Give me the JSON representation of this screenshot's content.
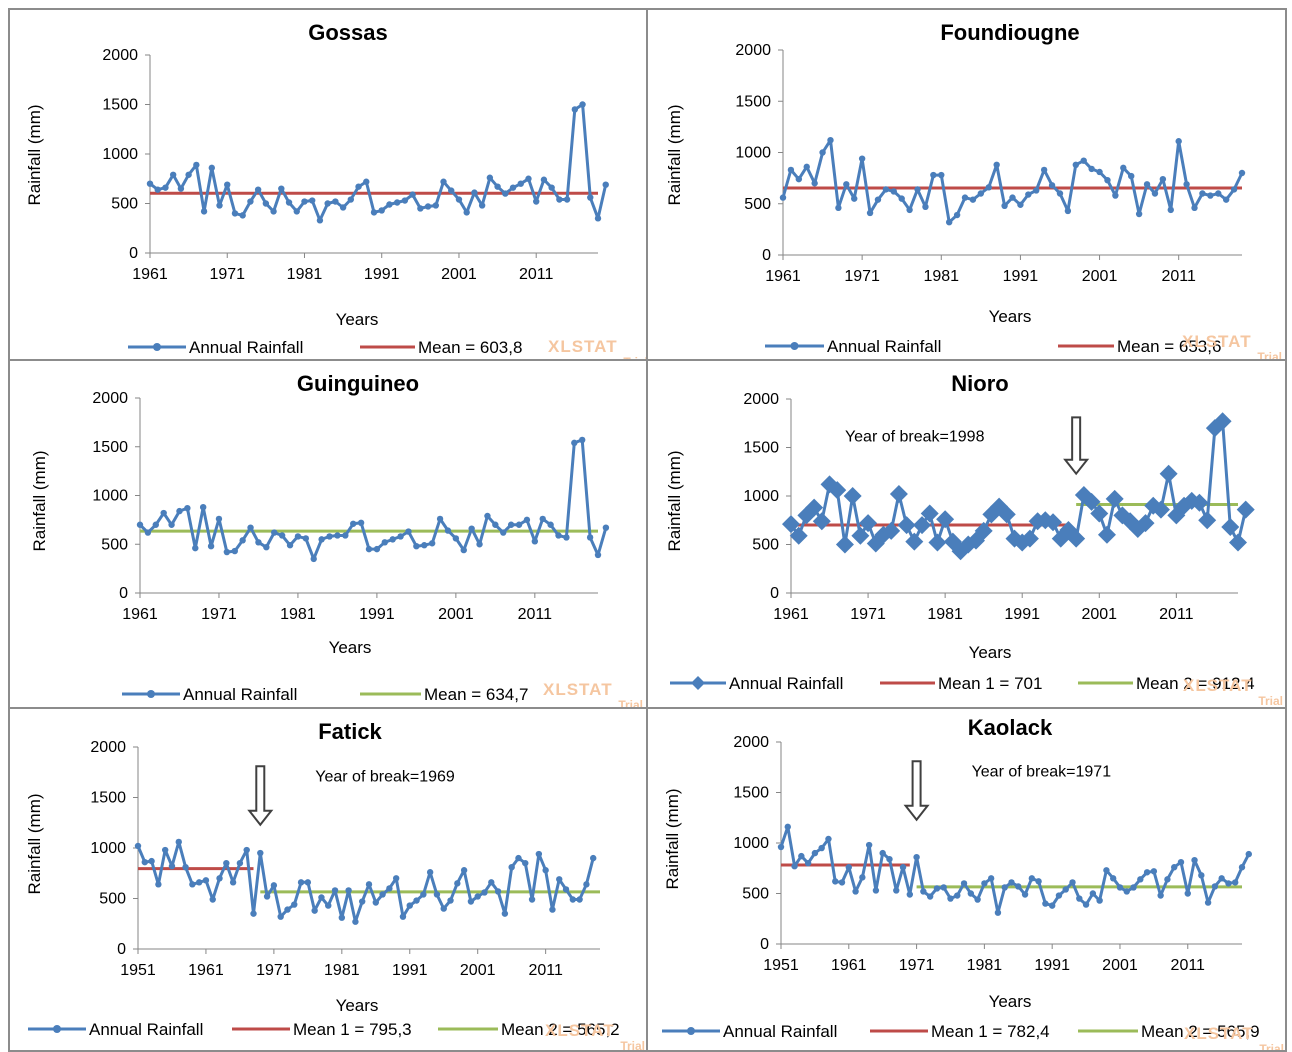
{
  "colors": {
    "series": "#4a7ebb",
    "mean": "#be4b48",
    "mean2": "#9bbb59",
    "axis": "#868686",
    "arrow": "#404040"
  },
  "watermark": {
    "brand": "XLSTAT",
    "sub": "Trial"
  },
  "chart_data": [
    {
      "id": "gossas",
      "type": "line",
      "title": "Gossas",
      "xlabel": "Years",
      "ylabel": "Rainfall (mm)",
      "xlim": [
        1961,
        2019
      ],
      "ylim": [
        0,
        2000
      ],
      "xticks": [
        1961,
        1971,
        1981,
        1991,
        2001,
        2011
      ],
      "yticks": [
        0,
        500,
        1000,
        1500,
        2000
      ],
      "marker": "circle",
      "series": [
        {
          "name": "Annual Rainfall",
          "x_start": 1961,
          "values": [
            700,
            640,
            660,
            790,
            650,
            790,
            890,
            420,
            860,
            480,
            690,
            400,
            380,
            520,
            640,
            500,
            420,
            650,
            510,
            420,
            520,
            530,
            330,
            500,
            520,
            460,
            540,
            670,
            720,
            410,
            430,
            490,
            510,
            530,
            590,
            450,
            470,
            480,
            720,
            630,
            540,
            410,
            610,
            480,
            760,
            670,
            600,
            660,
            700,
            750,
            520,
            740,
            660,
            540,
            540,
            1450,
            1500,
            560,
            350,
            690
          ]
        }
      ],
      "means": [
        {
          "label": "Mean = 603,8",
          "value": 603.8,
          "from": 1961,
          "to": 2019,
          "color": "#be4b48"
        }
      ]
    },
    {
      "id": "foundiougne",
      "type": "line",
      "title": "Foundiougne",
      "xlabel": "Years",
      "ylabel": "Rainfall (mm)",
      "xlim": [
        1961,
        2019
      ],
      "ylim": [
        0,
        2000
      ],
      "xticks": [
        1961,
        1971,
        1981,
        1991,
        2001,
        2011
      ],
      "yticks": [
        0,
        500,
        1000,
        1500,
        2000
      ],
      "marker": "circle",
      "series": [
        {
          "name": "Annual Rainfall",
          "x_start": 1961,
          "values": [
            560,
            830,
            740,
            860,
            700,
            1000,
            1120,
            460,
            690,
            550,
            940,
            410,
            540,
            640,
            620,
            550,
            440,
            640,
            470,
            780,
            780,
            320,
            390,
            560,
            540,
            600,
            660,
            880,
            480,
            560,
            490,
            590,
            630,
            830,
            680,
            600,
            430,
            880,
            920,
            840,
            810,
            730,
            580,
            850,
            770,
            400,
            690,
            600,
            740,
            440,
            1110,
            690,
            460,
            600,
            580,
            600,
            540,
            640,
            800
          ]
        }
      ],
      "means": [
        {
          "label": "Mean = 653,6",
          "value": 653.6,
          "from": 1961,
          "to": 2019,
          "color": "#be4b48"
        }
      ]
    },
    {
      "id": "guinguineo",
      "type": "line",
      "title": "Guinguineo",
      "xlabel": "Years",
      "ylabel": "Rainfall (mm)",
      "xlim": [
        1961,
        2019
      ],
      "ylim": [
        0,
        2000
      ],
      "xticks": [
        1961,
        1971,
        1981,
        1991,
        2001,
        2011
      ],
      "yticks": [
        0,
        500,
        1000,
        1500,
        2000
      ],
      "marker": "circle",
      "series": [
        {
          "name": "Annual Rainfall",
          "x_start": 1961,
          "values": [
            700,
            620,
            700,
            820,
            700,
            840,
            870,
            460,
            880,
            480,
            760,
            420,
            430,
            540,
            670,
            520,
            470,
            620,
            590,
            490,
            580,
            560,
            350,
            550,
            580,
            590,
            590,
            710,
            720,
            450,
            450,
            520,
            550,
            580,
            630,
            480,
            490,
            510,
            760,
            640,
            560,
            440,
            660,
            500,
            790,
            700,
            620,
            700,
            700,
            750,
            530,
            760,
            700,
            590,
            570,
            1540,
            1570,
            570,
            390,
            670
          ]
        }
      ],
      "means": [
        {
          "label": "Mean = 634,7",
          "value": 634.7,
          "from": 1961,
          "to": 2019,
          "color": "#9bbb59"
        }
      ]
    },
    {
      "id": "nioro",
      "type": "line",
      "title": "Nioro",
      "xlabel": "Years",
      "ylabel": "Rainfall (mm)",
      "xlim": [
        1961,
        2019
      ],
      "ylim": [
        0,
        2000
      ],
      "xticks": [
        1961,
        1971,
        1981,
        1991,
        2001,
        2011
      ],
      "yticks": [
        0,
        500,
        1000,
        1500,
        2000
      ],
      "marker": "diamond",
      "annotation": {
        "text": "Year of break=1998",
        "year": 1998
      },
      "series": [
        {
          "name": "Annual Rainfall",
          "x_start": 1961,
          "values": [
            710,
            590,
            800,
            880,
            740,
            1120,
            1060,
            500,
            1000,
            590,
            720,
            510,
            600,
            640,
            1020,
            700,
            530,
            700,
            820,
            520,
            760,
            530,
            430,
            500,
            540,
            640,
            810,
            890,
            810,
            560,
            520,
            560,
            740,
            750,
            730,
            560,
            650,
            560,
            1010,
            940,
            820,
            600,
            970,
            800,
            740,
            660,
            720,
            900,
            860,
            1230,
            800,
            900,
            950,
            930,
            750,
            1700,
            1770,
            680,
            520,
            860
          ]
        }
      ],
      "means": [
        {
          "label": "Mean 1 = 701",
          "value": 701,
          "from": 1961,
          "to": 1997,
          "color": "#be4b48"
        },
        {
          "label": "Mean 2 = 912.4",
          "value": 912.4,
          "from": 1998,
          "to": 2019,
          "color": "#9bbb59"
        }
      ]
    },
    {
      "id": "fatick",
      "type": "line",
      "title": "Fatick",
      "xlabel": "Years",
      "ylabel": "Rainfall (mm)",
      "xlim": [
        1951,
        2019
      ],
      "ylim": [
        0,
        2000
      ],
      "xticks": [
        1951,
        1961,
        1971,
        1981,
        1991,
        2001,
        2011
      ],
      "yticks": [
        0,
        500,
        1000,
        1500,
        2000
      ],
      "marker": "circle",
      "annotation": {
        "text": "Year of break=1969",
        "year": 1969
      },
      "series": [
        {
          "name": "Annual Rainfall",
          "x_start": 1951,
          "values": [
            1020,
            860,
            870,
            640,
            980,
            820,
            1060,
            810,
            640,
            660,
            680,
            490,
            700,
            850,
            660,
            850,
            980,
            350,
            950,
            520,
            630,
            320,
            390,
            440,
            660,
            660,
            380,
            510,
            430,
            580,
            310,
            580,
            270,
            470,
            640,
            460,
            540,
            600,
            700,
            320,
            430,
            480,
            540,
            760,
            540,
            400,
            480,
            650,
            780,
            470,
            520,
            560,
            660,
            570,
            350,
            810,
            900,
            850,
            490,
            940,
            780,
            390,
            690,
            590,
            490,
            490,
            640,
            900
          ]
        }
      ],
      "means": [
        {
          "label": "Mean 1 = 795,3",
          "value": 795.3,
          "from": 1951,
          "to": 1968,
          "color": "#be4b48"
        },
        {
          "label": "Mean 2 = 565,2",
          "value": 565.2,
          "from": 1969,
          "to": 2019,
          "color": "#9bbb59"
        }
      ]
    },
    {
      "id": "kaolack",
      "type": "line",
      "title": "Kaolack",
      "xlabel": "Years",
      "ylabel": "Rainfall (mm)",
      "xlim": [
        1951,
        2019
      ],
      "ylim": [
        0,
        2000
      ],
      "xticks": [
        1951,
        1961,
        1971,
        1981,
        1991,
        2001,
        2011
      ],
      "yticks": [
        0,
        500,
        1000,
        1500,
        2000
      ],
      "marker": "circle",
      "annotation": {
        "text": "Year of break=1971",
        "year": 1971
      },
      "series": [
        {
          "name": "Annual Rainfall",
          "x_start": 1951,
          "values": [
            960,
            1160,
            770,
            870,
            800,
            900,
            950,
            1040,
            620,
            610,
            760,
            520,
            660,
            980,
            530,
            900,
            840,
            530,
            760,
            490,
            860,
            520,
            470,
            550,
            560,
            450,
            480,
            600,
            500,
            440,
            600,
            650,
            310,
            560,
            610,
            570,
            490,
            650,
            620,
            400,
            380,
            480,
            540,
            610,
            450,
            390,
            500,
            430,
            730,
            650,
            560,
            520,
            560,
            640,
            710,
            720,
            480,
            640,
            760,
            810,
            500,
            830,
            680,
            410,
            570,
            650,
            600,
            610,
            760,
            890
          ]
        }
      ],
      "means": [
        {
          "label": "Mean 1 = 782,4",
          "value": 782.4,
          "from": 1951,
          "to": 1970,
          "color": "#be4b48"
        },
        {
          "label": "Mean 2 = 565,9",
          "value": 565.9,
          "from": 1971,
          "to": 2019,
          "color": "#9bbb59"
        }
      ]
    }
  ]
}
